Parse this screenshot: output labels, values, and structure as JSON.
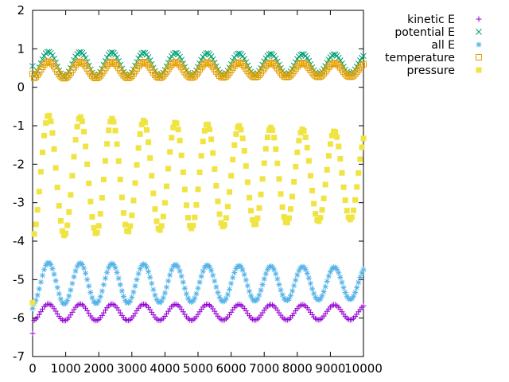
{
  "chart_data": {
    "type": "scatter",
    "title": "",
    "xlabel": "",
    "ylabel": "",
    "xlim": [
      0,
      10000
    ],
    "ylim": [
      -7,
      2
    ],
    "x_ticks": [
      "0",
      "1000",
      "2000",
      "3000",
      "4000",
      "5000",
      "6000",
      "7000",
      "8000",
      "9000",
      "10000"
    ],
    "y_ticks": [
      "-7",
      "-6",
      "-5",
      "-4",
      "-3",
      "-2",
      "-1",
      "0",
      "1",
      "2"
    ],
    "x_tick_values": [
      0,
      1000,
      2000,
      3000,
      4000,
      5000,
      6000,
      7000,
      8000,
      9000,
      10000
    ],
    "y_tick_values": [
      -7,
      -6,
      -5,
      -4,
      -3,
      -2,
      -1,
      0,
      1,
      2
    ],
    "grid": false,
    "legend_position": "outside-top-right",
    "oscillation_period": 960,
    "sample_step": 50,
    "series": [
      {
        "name": "kinetic E",
        "marker": "plus",
        "color": "#9400d3",
        "center": -5.85,
        "amplitude": 0.22,
        "damping": 0.12,
        "first_value": -6.4,
        "peak_x": 480
      },
      {
        "name": "potential E",
        "marker": "cross",
        "color": "#009e73",
        "center": 0.6,
        "amplitude": 0.33,
        "damping": 0.25,
        "first_value": 0.55,
        "peak_x": 480
      },
      {
        "name": "all E",
        "marker": "star",
        "color": "#56b4e9",
        "center": -5.1,
        "amplitude": 0.55,
        "damping": 0.25,
        "first_value": -5.75,
        "peak_x": 480
      },
      {
        "name": "temperature",
        "marker": "open-square",
        "color": "#e69f00",
        "center": 0.45,
        "amplitude": 0.22,
        "damping": 0.2,
        "first_value": 0.35,
        "peak_x": 480
      },
      {
        "name": "pressure",
        "marker": "filled-square",
        "color": "#f0e442",
        "center": -2.3,
        "amplitude": 1.6,
        "damping": 0.3,
        "first_value": -5.6,
        "peak_x": 480
      }
    ]
  }
}
